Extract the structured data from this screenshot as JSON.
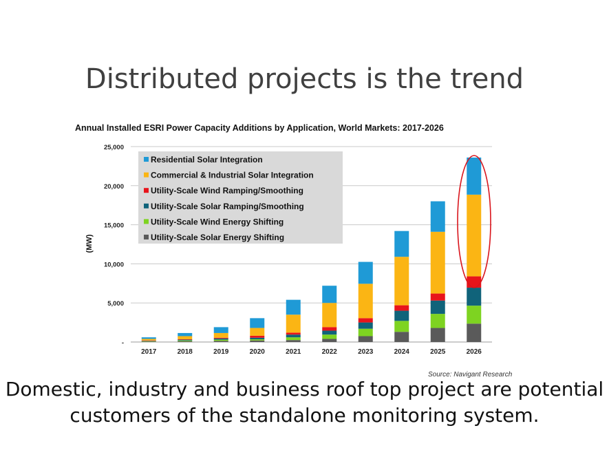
{
  "slide": {
    "title": "Distributed projects is the trend",
    "caption": "Domestic, industry and business roof top project are potential customers of the standalone monitoring system."
  },
  "colors": {
    "residential_solar": "#1f9ad6",
    "commercial_industrial_solar": "#fbb514",
    "utility_wind_ramping": "#e8141b",
    "utility_solar_ramping": "#10637a",
    "utility_wind_shifting": "#7ed321",
    "utility_solar_shifting": "#5a5a5a",
    "highlight_ellipse": "#d9141b",
    "legend_bg": "#d9d9d9"
  },
  "chart_data": {
    "type": "bar",
    "stacked": true,
    "title": "Annual Installed ESRI Power Capacity Additions by Application, World Markets: 2017-2026",
    "ylabel": "(MW)",
    "xlabel": "",
    "ylim": [
      0,
      25000
    ],
    "yticks": [
      "-",
      "5,000",
      "10,000",
      "15,000",
      "20,000",
      "25,000"
    ],
    "grid": true,
    "legend_position": "top-left",
    "source": "Source: Navigant Research",
    "categories": [
      "2017",
      "2018",
      "2019",
      "2020",
      "2021",
      "2022",
      "2023",
      "2024",
      "2025",
      "2026"
    ],
    "series": [
      {
        "name": "Utility-Scale Solar Energy Shifting",
        "color_key": "utility_solar_shifting",
        "values": [
          50,
          100,
          150,
          200,
          250,
          400,
          750,
          1300,
          1800,
          2350
        ]
      },
      {
        "name": "Utility-Scale Wind Energy Shifting",
        "color_key": "utility_wind_shifting",
        "values": [
          50,
          100,
          150,
          150,
          350,
          550,
          950,
          1400,
          1800,
          2300
        ]
      },
      {
        "name": "Utility-Scale Solar Ramping/Smoothing",
        "color_key": "utility_solar_ramping",
        "values": [
          50,
          100,
          150,
          200,
          350,
          500,
          800,
          1300,
          1700,
          2300
        ]
      },
      {
        "name": "Utility-Scale Wind Ramping/Smoothing",
        "color_key": "utility_wind_ramping",
        "values": [
          50,
          50,
          100,
          250,
          250,
          450,
          550,
          700,
          900,
          1450
        ]
      },
      {
        "name": "Commercial & Industrial Solar Integration",
        "color_key": "commercial_industrial_solar",
        "values": [
          200,
          400,
          600,
          1000,
          2300,
          3100,
          4400,
          6200,
          7900,
          10450
        ]
      },
      {
        "name": "Residential Solar Integration",
        "color_key": "residential_solar",
        "values": [
          200,
          400,
          750,
          1250,
          1900,
          2200,
          2800,
          3300,
          3900,
          4750
        ]
      }
    ],
    "legend_order": [
      "Residential Solar Integration",
      "Commercial & Industrial Solar Integration",
      "Utility-Scale Wind Ramping/Smoothing",
      "Utility-Scale Solar Ramping/Smoothing",
      "Utility-Scale Wind Energy Shifting",
      "Utility-Scale Solar Energy Shifting"
    ],
    "highlighted_category": "2026"
  }
}
